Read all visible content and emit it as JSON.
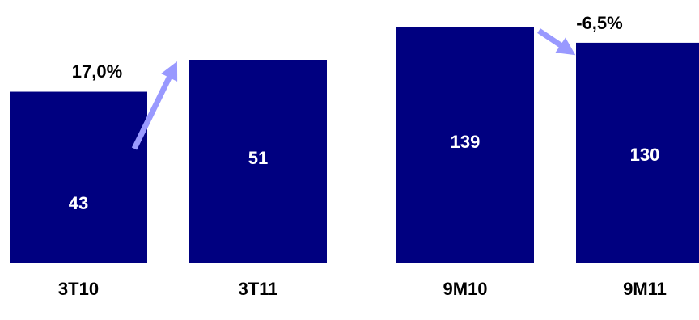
{
  "chart_data": {
    "type": "bar",
    "title": "",
    "xlabel": "",
    "ylabel": "",
    "categories": [
      "3T10",
      "3T11",
      "9M10",
      "9M11"
    ],
    "values": [
      43,
      51,
      139,
      130
    ],
    "value_labels": [
      "43",
      "51",
      "139",
      "130"
    ],
    "ylim_note": "two independently scaled pairs",
    "annotations": [
      {
        "text": "17,0%",
        "from_category": "3T10",
        "to_category": "3T11",
        "direction": "up"
      },
      {
        "text": "-6,5%",
        "from_category": "9M10",
        "to_category": "9M11",
        "direction": "down"
      }
    ],
    "grid": false,
    "legend": "none"
  },
  "colors": {
    "bar": "#000080",
    "arrow": "#9999ff",
    "value_text": "#ffffff",
    "label_text": "#000000"
  }
}
